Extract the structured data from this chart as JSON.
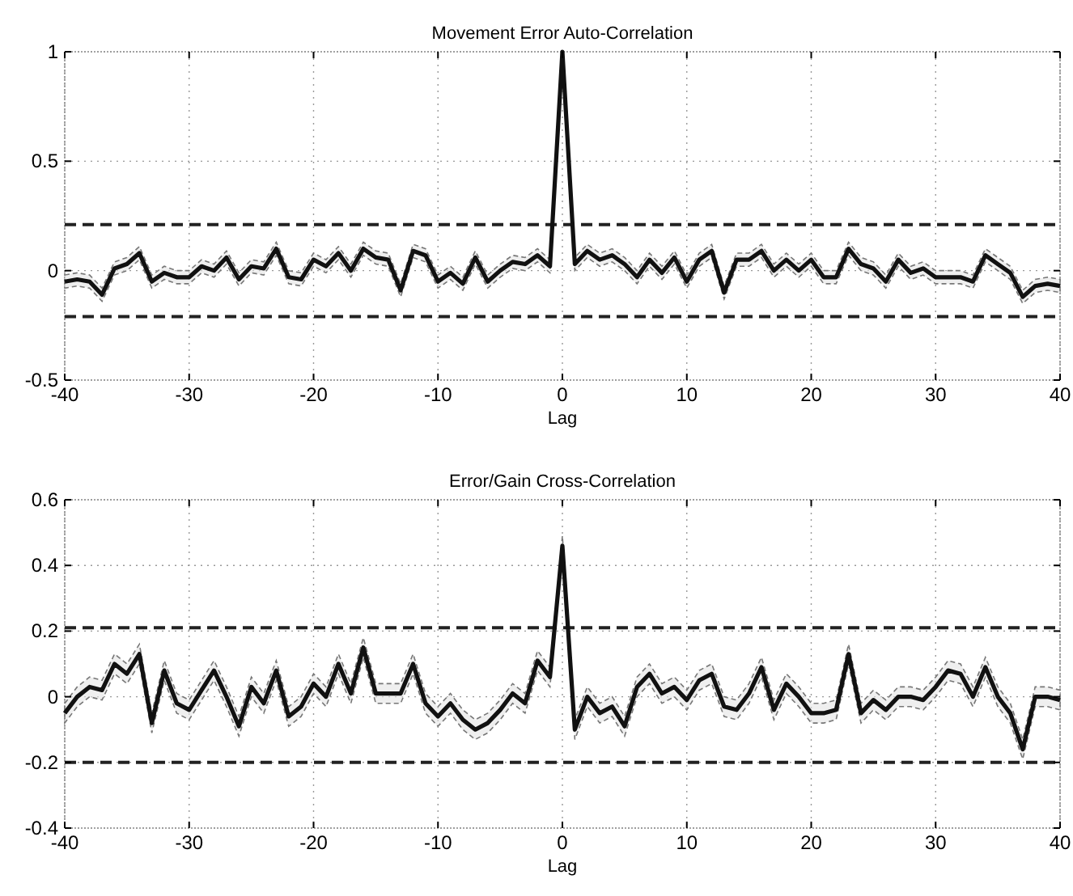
{
  "chart_data": [
    {
      "type": "line",
      "title": "Movement Error Auto-Correlation",
      "xlabel": "Lag",
      "xlim": [
        -40,
        40
      ],
      "xticks": [
        -40,
        -30,
        -20,
        -10,
        0,
        10,
        20,
        30,
        40
      ],
      "ylim": [
        -0.5,
        1
      ],
      "yticks": [
        -0.5,
        0,
        0.5,
        1
      ],
      "grid": true,
      "line_style": "solid",
      "x": [
        -40,
        -39,
        -38,
        -37,
        -36,
        -35,
        -34,
        -33,
        -32,
        -31,
        -30,
        -29,
        -28,
        -27,
        -26,
        -25,
        -24,
        -23,
        -22,
        -21,
        -20,
        -19,
        -18,
        -17,
        -16,
        -15,
        -14,
        -13,
        -12,
        -11,
        -10,
        -9,
        -8,
        -7,
        -6,
        -5,
        -4,
        -3,
        -2,
        -1,
        0,
        1,
        2,
        3,
        4,
        5,
        6,
        7,
        8,
        9,
        10,
        11,
        12,
        13,
        14,
        15,
        16,
        17,
        18,
        19,
        20,
        21,
        22,
        23,
        24,
        25,
        26,
        27,
        28,
        29,
        30,
        31,
        32,
        33,
        34,
        35,
        36,
        37,
        38,
        39,
        40
      ],
      "series": [
        {
          "color": "#111111",
          "values": [
            -0.05,
            -0.04,
            -0.05,
            -0.11,
            0.01,
            0.03,
            0.08,
            -0.05,
            -0.01,
            -0.03,
            -0.03,
            0.02,
            0.0,
            0.06,
            -0.04,
            0.02,
            0.01,
            0.1,
            -0.03,
            -0.04,
            0.05,
            0.02,
            0.08,
            0.0,
            0.1,
            0.06,
            0.05,
            -0.09,
            0.09,
            0.07,
            -0.05,
            -0.01,
            -0.06,
            0.06,
            -0.05,
            0.0,
            0.04,
            0.03,
            0.07,
            0.02,
            1.0,
            0.03,
            0.09,
            0.05,
            0.07,
            0.03,
            -0.03,
            0.05,
            -0.01,
            0.06,
            -0.05,
            0.05,
            0.09,
            -0.1,
            0.05,
            0.05,
            0.09,
            0.0,
            0.05,
            0.0,
            0.05,
            -0.03,
            -0.03,
            0.1,
            0.03,
            0.01,
            -0.05,
            0.05,
            -0.01,
            0.01,
            -0.03,
            -0.03,
            -0.03,
            -0.05,
            0.07,
            0.03,
            -0.01,
            -0.12,
            -0.07,
            -0.06,
            -0.07
          ],
          "lower": [
            -0.08,
            -0.07,
            -0.08,
            -0.14,
            -0.02,
            0,
            0.05,
            -0.08,
            -0.04,
            -0.06,
            -0.06,
            -0.01,
            -0.03,
            0.03,
            -0.07,
            -0.01,
            -0.02,
            0.07,
            -0.06,
            -0.07,
            0.02,
            -0.01,
            0.05,
            -0.03,
            0.07,
            0.03,
            0.02,
            -0.12,
            0.06,
            0.04,
            -0.08,
            -0.04,
            -0.09,
            0.03,
            -0.08,
            -0.03,
            0.01,
            0,
            0.04,
            -0.01,
            0.97,
            0,
            0.06,
            0.02,
            0.04,
            0,
            -0.06,
            0.02,
            -0.04,
            0.03,
            -0.08,
            0.02,
            0.06,
            -0.13,
            0.02,
            0.02,
            0.06,
            -0.03,
            0.02,
            -0.03,
            0.02,
            -0.06,
            -0.06,
            0.07,
            0,
            -0.02,
            -0.08,
            0.02,
            -0.04,
            -0.02,
            -0.06,
            -0.06,
            -0.06,
            -0.08,
            0.04,
            0,
            -0.04,
            -0.15,
            -0.1,
            -0.09,
            -0.1
          ],
          "upper": [
            -0.02,
            -0.01,
            -0.02,
            -0.08,
            0.04,
            0.06,
            0.11,
            -0.02,
            0.02,
            0,
            0,
            0.05,
            0.03,
            0.09,
            -0.01,
            0.05,
            0.04,
            0.13,
            0,
            -0.01,
            0.08,
            0.05,
            0.11,
            0.03,
            0.13,
            0.09,
            0.08,
            -0.06,
            0.12,
            0.1,
            -0.02,
            0.02,
            -0.03,
            0.09,
            -0.02,
            0.03,
            0.07,
            0.06,
            0.1,
            0.05,
            1.0,
            0.06,
            0.12,
            0.08,
            0.1,
            0.06,
            0,
            0.08,
            0.02,
            0.09,
            -0.02,
            0.08,
            0.12,
            -0.07,
            0.08,
            0.08,
            0.12,
            0.03,
            0.08,
            0.03,
            0.08,
            0,
            0,
            0.13,
            0.06,
            0.04,
            -0.02,
            0.08,
            0.02,
            0.04,
            0,
            0,
            0,
            -0.02,
            0.1,
            0.06,
            0.02,
            -0.09,
            -0.04,
            -0.03,
            -0.04
          ]
        }
      ],
      "ref_lines": [
        {
          "axis": "y",
          "value": 0.21,
          "color": "#222222",
          "line_style": "dashed"
        },
        {
          "axis": "y",
          "value": -0.21,
          "color": "#222222",
          "line_style": "dashed"
        }
      ]
    },
    {
      "type": "line",
      "title": "Error/Gain Cross-Correlation",
      "xlabel": "Lag",
      "xlim": [
        -40,
        40
      ],
      "xticks": [
        -40,
        -30,
        -20,
        -10,
        0,
        10,
        20,
        30,
        40
      ],
      "ylim": [
        -0.4,
        0.6
      ],
      "yticks": [
        -0.4,
        -0.2,
        0,
        0.2,
        0.4,
        0.6
      ],
      "grid": true,
      "line_style": "solid",
      "x": [
        -40,
        -39,
        -38,
        -37,
        -36,
        -35,
        -34,
        -33,
        -32,
        -31,
        -30,
        -29,
        -28,
        -27,
        -26,
        -25,
        -24,
        -23,
        -22,
        -21,
        -20,
        -19,
        -18,
        -17,
        -16,
        -15,
        -14,
        -13,
        -12,
        -11,
        -10,
        -9,
        -8,
        -7,
        -6,
        -5,
        -4,
        -3,
        -2,
        -1,
        0,
        1,
        2,
        3,
        4,
        5,
        6,
        7,
        8,
        9,
        10,
        11,
        12,
        13,
        14,
        15,
        16,
        17,
        18,
        19,
        20,
        21,
        22,
        23,
        24,
        25,
        26,
        27,
        28,
        29,
        30,
        31,
        32,
        33,
        34,
        35,
        36,
        37,
        38,
        39,
        40
      ],
      "series": [
        {
          "color": "#111111",
          "values": [
            -0.05,
            0.0,
            0.03,
            0.02,
            0.1,
            0.07,
            0.13,
            -0.08,
            0.08,
            -0.02,
            -0.04,
            0.02,
            0.08,
            0.0,
            -0.09,
            0.03,
            -0.02,
            0.08,
            -0.06,
            -0.03,
            0.04,
            0.0,
            0.1,
            0.01,
            0.15,
            0.01,
            0.01,
            0.01,
            0.1,
            -0.02,
            -0.06,
            -0.02,
            -0.07,
            -0.1,
            -0.08,
            -0.04,
            0.01,
            -0.02,
            0.11,
            0.06,
            0.46,
            -0.1,
            0.0,
            -0.05,
            -0.03,
            -0.09,
            0.03,
            0.07,
            0.01,
            0.03,
            -0.01,
            0.05,
            0.07,
            -0.03,
            -0.04,
            0.01,
            0.09,
            -0.04,
            0.04,
            0.0,
            -0.05,
            -0.05,
            -0.04,
            0.13,
            -0.05,
            -0.01,
            -0.04,
            0.0,
            0.0,
            -0.01,
            0.03,
            0.08,
            0.07,
            0.0,
            0.09,
            0.0,
            -0.05,
            -0.16,
            0.0,
            0.0,
            -0.01
          ],
          "lower": [
            -0.08,
            -0.03,
            0,
            -0.01,
            0.07,
            0.04,
            0.1,
            -0.11,
            0.05,
            -0.05,
            -0.07,
            -0.01,
            0.05,
            -0.03,
            -0.12,
            0,
            -0.05,
            0.05,
            -0.09,
            -0.06,
            0.01,
            -0.03,
            0.07,
            -0.02,
            0.12,
            -0.02,
            -0.02,
            -0.02,
            0.07,
            -0.05,
            -0.09,
            -0.05,
            -0.1,
            -0.13,
            -0.11,
            -0.07,
            -0.02,
            -0.05,
            0.08,
            0.03,
            0.43,
            -0.13,
            -0.03,
            -0.08,
            -0.06,
            -0.12,
            0,
            0.04,
            -0.02,
            0,
            -0.04,
            0.02,
            0.04,
            -0.06,
            -0.07,
            -0.02,
            0.06,
            -0.07,
            0.01,
            -0.03,
            -0.08,
            -0.08,
            -0.07,
            0.1,
            -0.08,
            -0.04,
            -0.07,
            -0.03,
            -0.03,
            -0.04,
            0,
            0.05,
            0.04,
            -0.03,
            0.06,
            -0.03,
            -0.08,
            -0.19,
            -0.03,
            -0.03,
            -0.04
          ],
          "upper": [
            -0.02,
            0.03,
            0.06,
            0.05,
            0.13,
            0.1,
            0.16,
            -0.05,
            0.11,
            0.01,
            -0.01,
            0.05,
            0.11,
            0.03,
            -0.06,
            0.06,
            0.01,
            0.11,
            -0.03,
            0,
            0.07,
            0.03,
            0.13,
            0.04,
            0.18,
            0.04,
            0.04,
            0.04,
            0.13,
            0.01,
            -0.03,
            0.01,
            -0.04,
            -0.07,
            -0.05,
            -0.01,
            0.04,
            0.01,
            0.14,
            0.09,
            0.49,
            -0.07,
            0.03,
            -0.02,
            0,
            -0.06,
            0.06,
            0.1,
            0.04,
            0.06,
            0.02,
            0.08,
            0.1,
            0,
            -0.01,
            0.04,
            0.12,
            -0.01,
            0.07,
            0.03,
            -0.02,
            -0.02,
            -0.01,
            0.16,
            -0.02,
            0.02,
            -0.01,
            0.03,
            0.03,
            0.02,
            0.06,
            0.11,
            0.1,
            0.03,
            0.12,
            0.03,
            -0.02,
            -0.13,
            0.03,
            0.03,
            0.02
          ]
        }
      ],
      "ref_lines": [
        {
          "axis": "y",
          "value": 0.21,
          "color": "#222222",
          "line_style": "dashed"
        },
        {
          "axis": "y",
          "value": -0.2,
          "color": "#222222",
          "line_style": "dashed"
        }
      ]
    }
  ]
}
